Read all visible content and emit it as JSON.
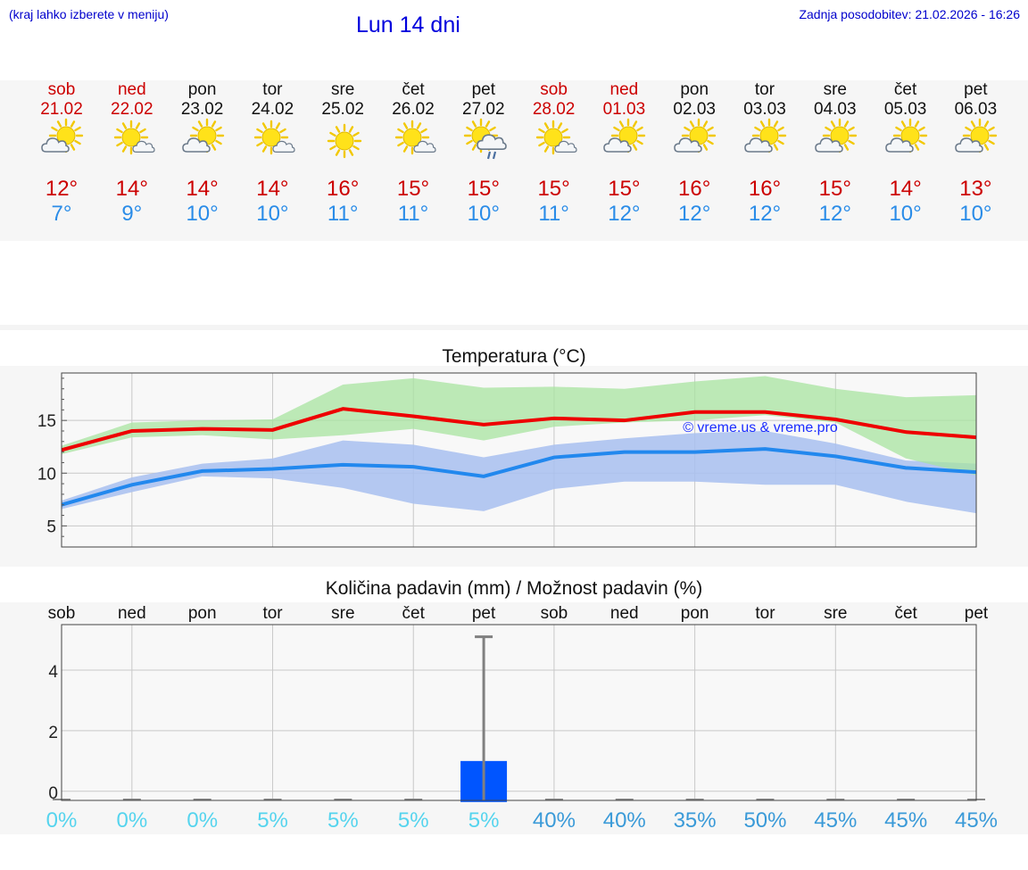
{
  "header": {
    "note": "(kraj lahko izberete v meniju)",
    "title": "Lun 14 dni",
    "updated": "Zadnja posodobitev: 21.02.2026 - 16:26"
  },
  "colors": {
    "max": "#cc0000",
    "min": "#2a8ce8",
    "link": "#0000cc"
  },
  "forecast": [
    {
      "day": "sob",
      "date": "21.02",
      "max": "12°",
      "min": "7°",
      "icon": "partly-cloudy-icon",
      "weekend": true
    },
    {
      "day": "ned",
      "date": "22.02",
      "max": "14°",
      "min": "9°",
      "icon": "sun-small-cloud-icon",
      "weekend": true
    },
    {
      "day": "pon",
      "date": "23.02",
      "max": "14°",
      "min": "10°",
      "icon": "partly-cloudy-icon",
      "weekend": false
    },
    {
      "day": "tor",
      "date": "24.02",
      "max": "14°",
      "min": "10°",
      "icon": "sun-small-cloud-icon",
      "weekend": false
    },
    {
      "day": "sre",
      "date": "25.02",
      "max": "16°",
      "min": "11°",
      "icon": "sunny-icon",
      "weekend": false
    },
    {
      "day": "čet",
      "date": "26.02",
      "max": "15°",
      "min": "11°",
      "icon": "sun-small-cloud-icon",
      "weekend": false
    },
    {
      "day": "pet",
      "date": "27.02",
      "max": "15°",
      "min": "10°",
      "icon": "sun-cloud-rain-icon",
      "weekend": false
    },
    {
      "day": "sob",
      "date": "28.02",
      "max": "15°",
      "min": "11°",
      "icon": "sun-small-cloud-icon",
      "weekend": true
    },
    {
      "day": "ned",
      "date": "01.03",
      "max": "15°",
      "min": "12°",
      "icon": "partly-cloudy-icon",
      "weekend": true
    },
    {
      "day": "pon",
      "date": "02.03",
      "max": "16°",
      "min": "12°",
      "icon": "partly-cloudy-icon",
      "weekend": false
    },
    {
      "day": "tor",
      "date": "03.03",
      "max": "16°",
      "min": "12°",
      "icon": "partly-cloudy-icon",
      "weekend": false
    },
    {
      "day": "sre",
      "date": "04.03",
      "max": "15°",
      "min": "12°",
      "icon": "partly-cloudy-icon",
      "weekend": false
    },
    {
      "day": "čet",
      "date": "05.03",
      "max": "14°",
      "min": "10°",
      "icon": "partly-cloudy-icon",
      "weekend": false
    },
    {
      "day": "pet",
      "date": "06.03",
      "max": "13°",
      "min": "10°",
      "icon": "partly-cloudy-icon",
      "weekend": false
    }
  ],
  "chart_data": [
    {
      "type": "line",
      "title": "Temperatura (°C)",
      "watermark": "© vreme.us & vreme.pro",
      "x": [
        0,
        1,
        2,
        3,
        4,
        5,
        6,
        7,
        8,
        9,
        10,
        11,
        12,
        13
      ],
      "ylim": [
        3,
        19.5
      ],
      "yticks": [
        5,
        10,
        15
      ],
      "series": [
        {
          "name": "max",
          "color": "#ee0000",
          "values": [
            12.2,
            14.0,
            14.2,
            14.1,
            16.1,
            15.4,
            14.6,
            15.2,
            15.0,
            15.8,
            15.8,
            15.1,
            13.9,
            13.4
          ]
        },
        {
          "name": "max_band_high",
          "color": "#a8e4a0",
          "values": [
            12.6,
            14.8,
            15.0,
            15.1,
            18.4,
            19.0,
            18.1,
            18.2,
            18.0,
            18.7,
            19.2,
            18.0,
            17.2,
            17.4
          ]
        },
        {
          "name": "max_band_low",
          "color": "#a8e4a0",
          "values": [
            11.8,
            13.4,
            13.6,
            13.2,
            13.6,
            14.2,
            13.1,
            14.4,
            14.8,
            15.0,
            15.5,
            14.8,
            11.4,
            9.8
          ]
        },
        {
          "name": "min",
          "color": "#2288ee",
          "values": [
            7.0,
            8.9,
            10.2,
            10.4,
            10.8,
            10.6,
            9.7,
            11.5,
            12.0,
            12.0,
            12.3,
            11.6,
            10.5,
            10.1
          ]
        },
        {
          "name": "min_band_high",
          "color": "#a8c0f0",
          "values": [
            7.4,
            9.6,
            10.9,
            11.4,
            13.1,
            12.7,
            11.5,
            12.7,
            13.3,
            13.8,
            14.0,
            12.8,
            11.2,
            10.9
          ]
        },
        {
          "name": "min_band_low",
          "color": "#a8c0f0",
          "values": [
            6.6,
            8.2,
            9.7,
            9.5,
            8.6,
            7.1,
            6.4,
            8.5,
            9.2,
            9.2,
            8.9,
            8.9,
            7.3,
            6.2
          ]
        }
      ]
    },
    {
      "type": "bar",
      "title": "Količina padavin (mm) / Možnost padavin (%)",
      "categories": [
        "sob",
        "ned",
        "pon",
        "tor",
        "sre",
        "čet",
        "pet",
        "sob",
        "ned",
        "pon",
        "tor",
        "sre",
        "čet",
        "pet"
      ],
      "ylim": [
        -0.3,
        5.5
      ],
      "yticks": [
        0,
        2,
        4
      ],
      "values": [
        0,
        0,
        0,
        0,
        0,
        0,
        1.0,
        0,
        0,
        0,
        0,
        0,
        0,
        0
      ],
      "error_high": [
        0,
        0,
        0,
        0,
        0,
        0,
        5.1,
        0,
        0,
        0,
        0,
        0,
        0,
        0
      ],
      "probability": [
        "0%",
        "0%",
        "0%",
        "5%",
        "5%",
        "5%",
        "5%",
        "40%",
        "40%",
        "35%",
        "50%",
        "45%",
        "45%",
        "45%"
      ]
    }
  ]
}
